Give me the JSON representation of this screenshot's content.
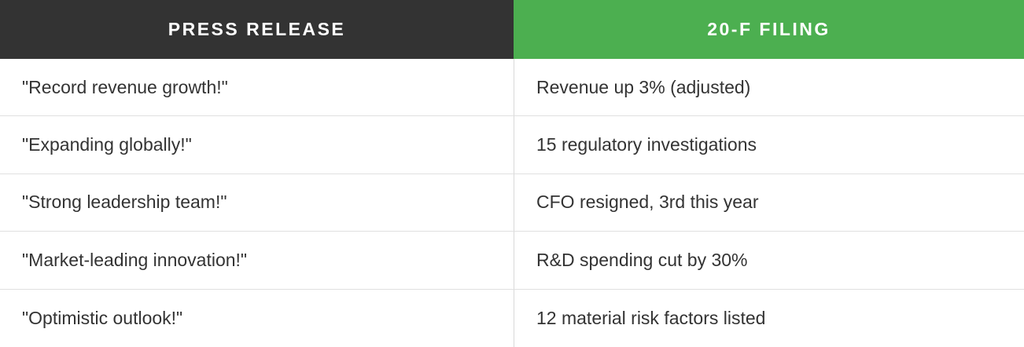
{
  "table": {
    "headers": [
      {
        "label": "PRESS RELEASE"
      },
      {
        "label": "20-F FILING"
      }
    ],
    "rows": [
      {
        "press_release": "\"Record revenue growth!\"",
        "filing": "Revenue up 3% (adjusted)"
      },
      {
        "press_release": "\"Expanding globally!\"",
        "filing": "15 regulatory investigations"
      },
      {
        "press_release": "\"Strong leadership team!\"",
        "filing": "CFO resigned, 3rd this year"
      },
      {
        "press_release": "\"Market-leading innovation!\"",
        "filing": "R&D spending cut by 30%"
      },
      {
        "press_release": "\"Optimistic outlook!\"",
        "filing": "12 material risk factors listed"
      }
    ]
  },
  "colors": {
    "header_dark_bg": "#333333",
    "header_green_bg": "#4caf50",
    "header_text": "#ffffff",
    "body_text": "#333333",
    "row_divider": "#e0e0e0",
    "column_divider": "#d9d9d9"
  }
}
